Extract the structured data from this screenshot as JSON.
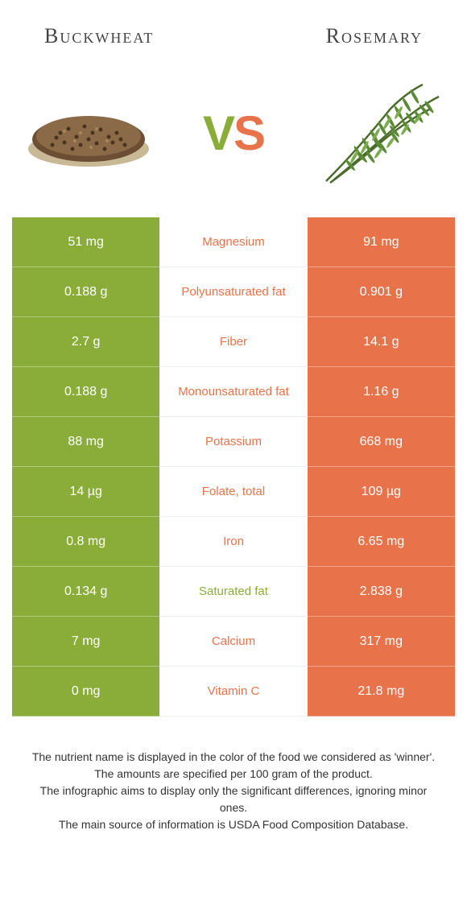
{
  "food_left": {
    "name": "Buckwheat"
  },
  "food_right": {
    "name": "Rosemary"
  },
  "vs": {
    "v": "V",
    "s": "S"
  },
  "colors": {
    "left": "#8aad3a",
    "right": "#e8734a",
    "bg": "#ffffff"
  },
  "rows": [
    {
      "label": "Magnesium",
      "left": "51 mg",
      "right": "91 mg",
      "winner": "right"
    },
    {
      "label": "Polyunsaturated fat",
      "left": "0.188 g",
      "right": "0.901 g",
      "winner": "right"
    },
    {
      "label": "Fiber",
      "left": "2.7 g",
      "right": "14.1 g",
      "winner": "right"
    },
    {
      "label": "Monounsaturated fat",
      "left": "0.188 g",
      "right": "1.16 g",
      "winner": "right"
    },
    {
      "label": "Potassium",
      "left": "88 mg",
      "right": "668 mg",
      "winner": "right"
    },
    {
      "label": "Folate, total",
      "left": "14 µg",
      "right": "109 µg",
      "winner": "right"
    },
    {
      "label": "Iron",
      "left": "0.8 mg",
      "right": "6.65 mg",
      "winner": "right"
    },
    {
      "label": "Saturated fat",
      "left": "0.134 g",
      "right": "2.838 g",
      "winner": "left"
    },
    {
      "label": "Calcium",
      "left": "7 mg",
      "right": "317 mg",
      "winner": "right"
    },
    {
      "label": "Vitamin C",
      "left": "0 mg",
      "right": "21.8 mg",
      "winner": "right"
    }
  ],
  "footer": {
    "line1": "The nutrient name is displayed in the color of the food we considered as 'winner'.",
    "line2": "The amounts are specified per 100 gram of the product.",
    "line3": "The infographic aims to display only the significant differences, ignoring minor ones.",
    "line4": "The main source of information is USDA Food Composition Database."
  }
}
